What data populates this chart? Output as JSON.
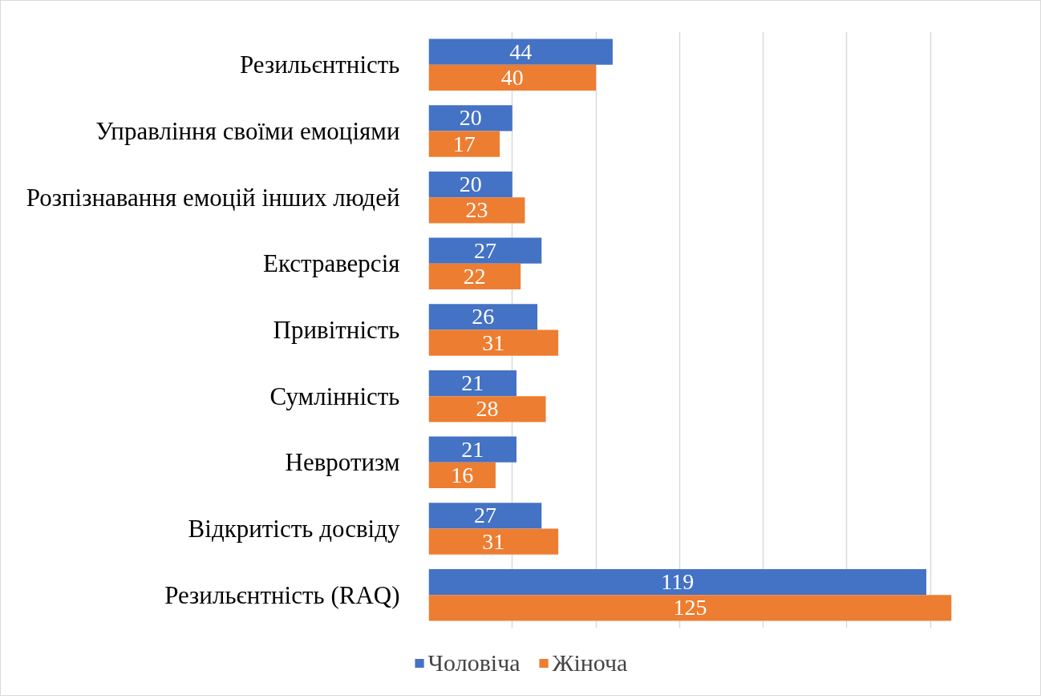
{
  "chart_data": {
    "type": "bar",
    "orientation": "horizontal",
    "categories": [
      "Резильєнтність",
      "Управління своїми емоціями",
      "Розпізнавання емоцій інших людей",
      "Екстраверсія",
      "Привітність",
      "Сумлінність",
      "Невротизм",
      "Відкритість досвіду",
      "Резильєнтність (RAQ)"
    ],
    "series": [
      {
        "name": "Чоловіча",
        "color": "#4472c4",
        "values": [
          44,
          20,
          20,
          27,
          26,
          21,
          21,
          27,
          119
        ]
      },
      {
        "name": "Жіноча",
        "color": "#ed7d31",
        "values": [
          40,
          17,
          23,
          22,
          31,
          28,
          16,
          31,
          125
        ]
      }
    ],
    "tick_labels": "y",
    "grid": "x",
    "legend": "bottom",
    "data_labels": true
  }
}
